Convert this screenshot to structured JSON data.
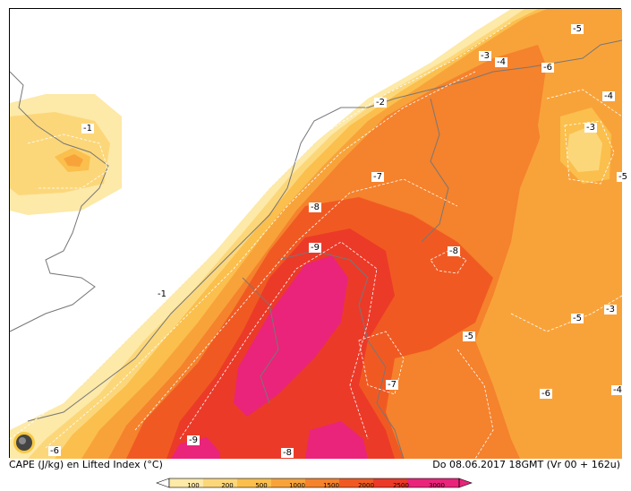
{
  "title": "CAPE (J/kg) en Lifted Index (°C)",
  "valid_time": "Do 08.06.2017  18GMT (Vr 00 + 162u)",
  "colors": {
    "c100": "#fde9a8",
    "c200": "#fcd77a",
    "c500": "#fbbf4d",
    "c1000": "#f8a33a",
    "c1500": "#f5822c",
    "c2000": "#f05a22",
    "c2500": "#ec3a28",
    "c3000": "#ea247a"
  },
  "legend": {
    "ticks": [
      "100",
      "200",
      "500",
      "1000",
      "1500",
      "2000",
      "2500",
      "3000"
    ]
  },
  "labels": [
    {
      "text": "-5"
    },
    {
      "text": "-3"
    },
    {
      "text": "-4"
    },
    {
      "text": "-6"
    },
    {
      "text": "-4"
    },
    {
      "text": "-1"
    },
    {
      "text": "-2"
    },
    {
      "text": "-3"
    },
    {
      "text": "-7"
    },
    {
      "text": "-5"
    },
    {
      "text": "-8"
    },
    {
      "text": "-9"
    },
    {
      "text": "-8"
    },
    {
      "text": "-1"
    },
    {
      "text": "-5"
    },
    {
      "text": "-3"
    },
    {
      "text": "-5"
    },
    {
      "text": "-7"
    },
    {
      "text": "-6"
    },
    {
      "text": "-4"
    },
    {
      "text": "-6"
    },
    {
      "text": "-9"
    },
    {
      "text": "-8"
    }
  ]
}
